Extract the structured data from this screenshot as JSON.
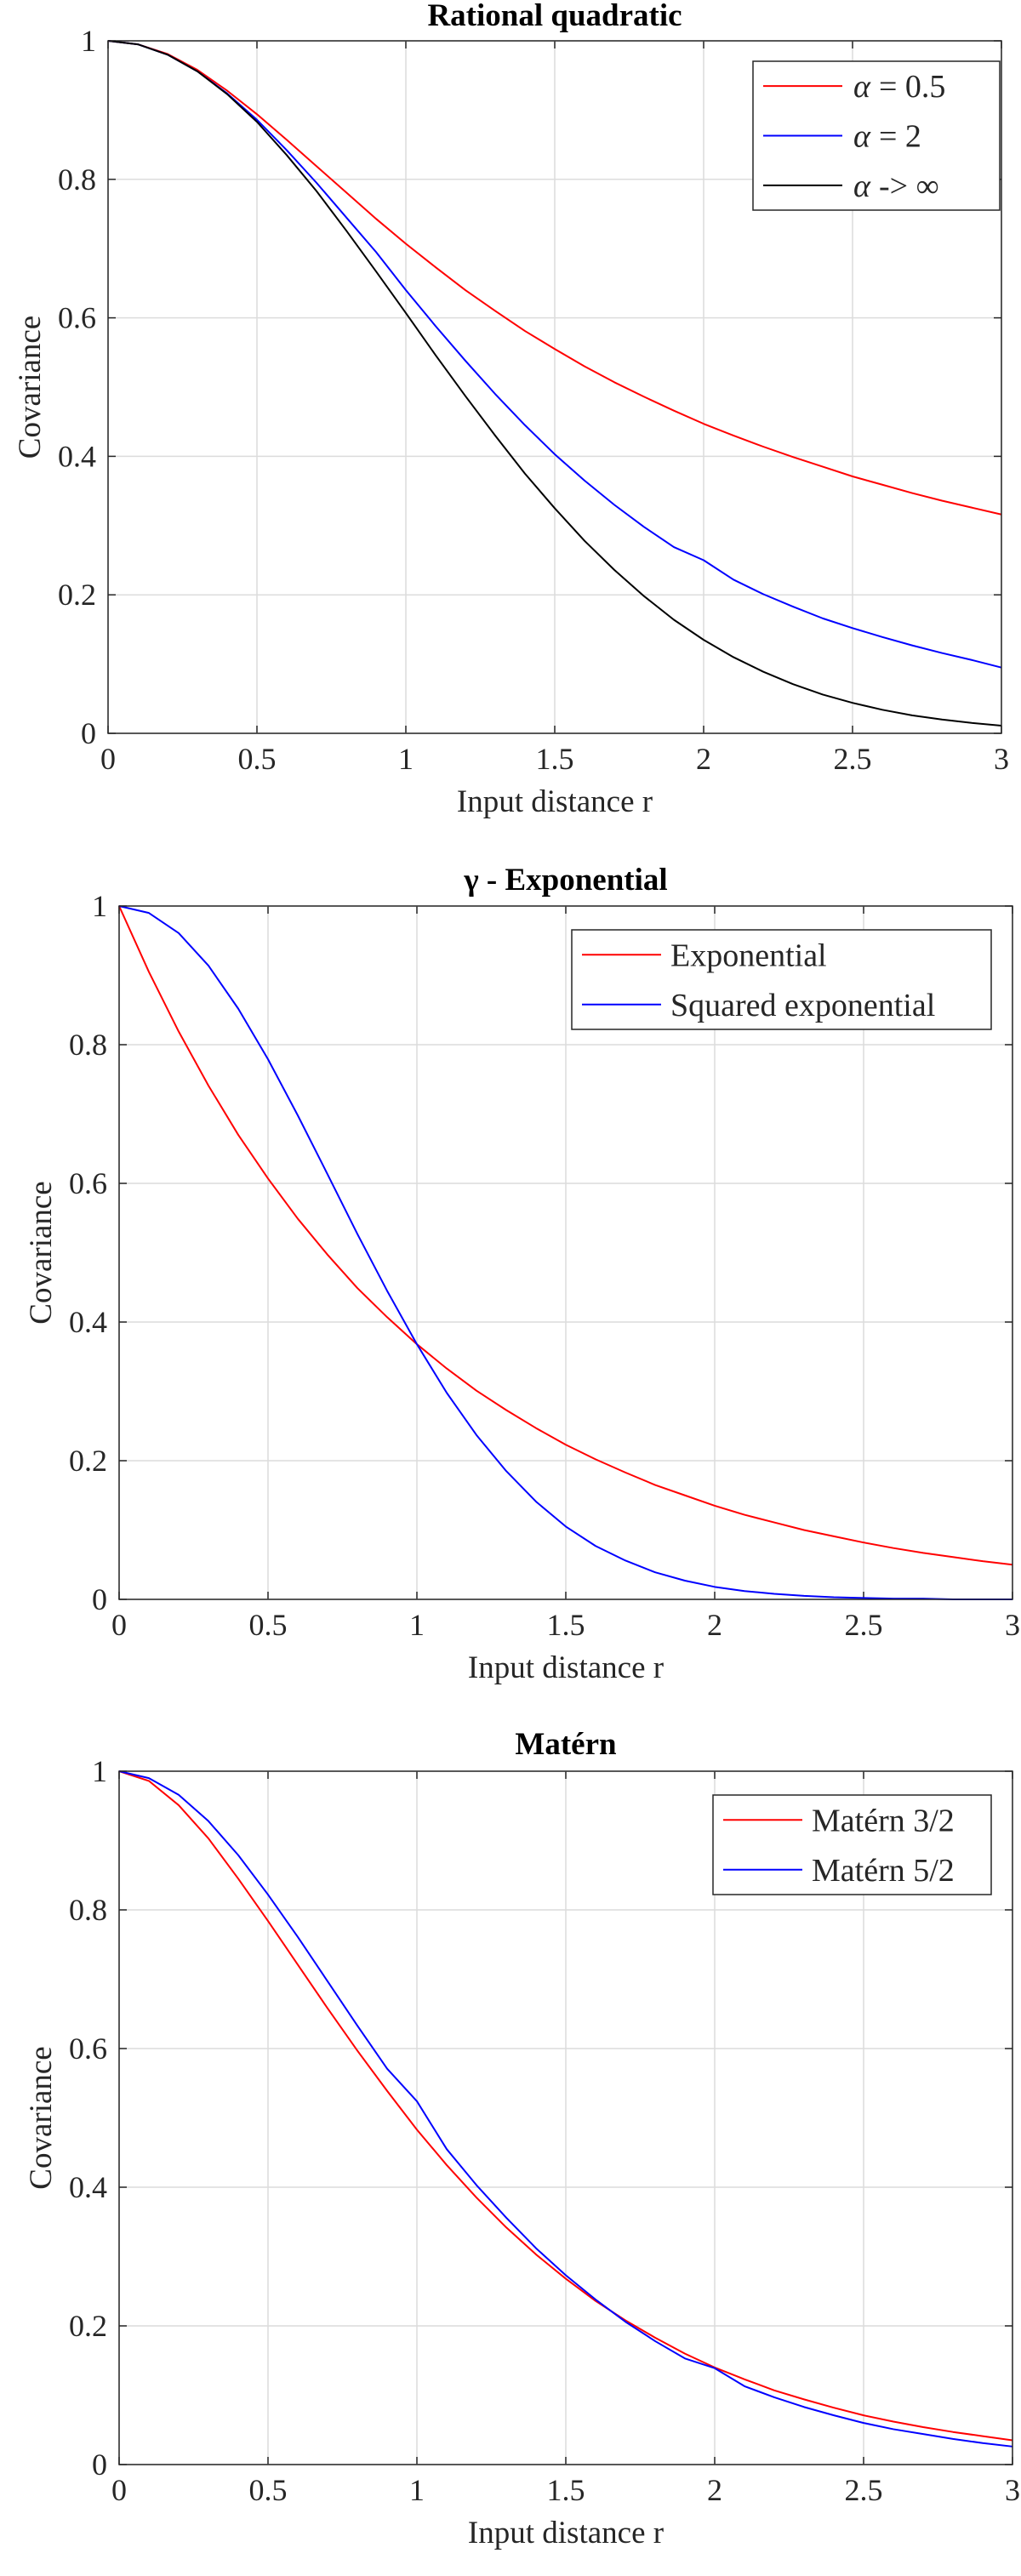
{
  "chart_data": [
    {
      "type": "line",
      "title": "Rational quadratic",
      "xlabel": "Input distance r",
      "ylabel": "Covariance",
      "xlim": [
        0,
        3
      ],
      "ylim": [
        0,
        1
      ],
      "xticks": [
        "0",
        "0.5",
        "1",
        "1.5",
        "2",
        "2.5",
        "3"
      ],
      "yticks": [
        "0",
        "0.2",
        "0.4",
        "0.6",
        "0.8",
        "1"
      ],
      "grid": true,
      "legend_position": "top-right",
      "x": [
        0,
        0.1,
        0.2,
        0.3,
        0.4,
        0.5,
        0.6,
        0.7,
        0.8,
        0.9,
        1.0,
        1.1,
        1.2,
        1.3,
        1.4,
        1.5,
        1.6,
        1.7,
        1.8,
        1.9,
        2.0,
        2.1,
        2.2,
        2.3,
        2.4,
        2.5,
        2.6,
        2.7,
        2.8,
        2.9,
        3.0
      ],
      "series": [
        {
          "name": "α = 0.5",
          "legend_text": "= 0.5",
          "color": "#ff0000",
          "values": [
            1,
            0.995,
            0.981,
            0.958,
            0.928,
            0.894,
            0.857,
            0.819,
            0.781,
            0.743,
            0.707,
            0.673,
            0.64,
            0.61,
            0.581,
            0.555,
            0.53,
            0.507,
            0.486,
            0.466,
            0.447,
            0.43,
            0.414,
            0.399,
            0.385,
            0.371,
            0.359,
            0.347,
            0.336,
            0.326,
            0.316
          ]
        },
        {
          "name": "α = 2",
          "legend_text": "= 2",
          "color": "#0000ff",
          "values": [
            1,
            0.995,
            0.98,
            0.956,
            0.924,
            0.886,
            0.842,
            0.795,
            0.745,
            0.695,
            0.64,
            0.588,
            0.538,
            0.49,
            0.445,
            0.403,
            0.365,
            0.33,
            0.298,
            0.269,
            0.25,
            0.222,
            0.201,
            0.183,
            0.166,
            0.152,
            0.139,
            0.127,
            0.116,
            0.106,
            0.095
          ]
        },
        {
          "name": "α -> ∞",
          "legend_text": "-> ∞",
          "color": "#000000",
          "values": [
            1,
            0.995,
            0.98,
            0.956,
            0.923,
            0.883,
            0.835,
            0.783,
            0.726,
            0.667,
            0.607,
            0.546,
            0.487,
            0.43,
            0.375,
            0.325,
            0.278,
            0.236,
            0.198,
            0.164,
            0.135,
            0.11,
            0.089,
            0.071,
            0.056,
            0.044,
            0.034,
            0.026,
            0.02,
            0.015,
            0.011
          ]
        }
      ]
    },
    {
      "type": "line",
      "title": "γ - Exponential",
      "xlabel": "Input distance r",
      "ylabel": "Covariance",
      "xlim": [
        0,
        3
      ],
      "ylim": [
        0,
        1
      ],
      "xticks": [
        "0",
        "0.5",
        "1",
        "1.5",
        "2",
        "2.5",
        "3"
      ],
      "yticks": [
        "0",
        "0.2",
        "0.4",
        "0.6",
        "0.8",
        "1"
      ],
      "grid": true,
      "legend_position": "top-right",
      "x": [
        0,
        0.1,
        0.2,
        0.3,
        0.4,
        0.5,
        0.6,
        0.7,
        0.8,
        0.9,
        1.0,
        1.1,
        1.2,
        1.3,
        1.4,
        1.5,
        1.6,
        1.7,
        1.8,
        1.9,
        2.0,
        2.1,
        2.2,
        2.3,
        2.4,
        2.5,
        2.6,
        2.7,
        2.8,
        2.9,
        3.0
      ],
      "series": [
        {
          "name": "Exponential",
          "legend_text": "Exponential",
          "color": "#ff0000",
          "values": [
            1,
            0.905,
            0.819,
            0.741,
            0.67,
            0.607,
            0.549,
            0.497,
            0.449,
            0.407,
            0.368,
            0.333,
            0.301,
            0.273,
            0.247,
            0.223,
            0.202,
            0.183,
            0.165,
            0.15,
            0.135,
            0.122,
            0.111,
            0.1,
            0.091,
            0.082,
            0.074,
            0.067,
            0.061,
            0.055,
            0.05
          ]
        },
        {
          "name": "Squared exponential",
          "legend_text": "Squared exponential",
          "color": "#0000ff",
          "values": [
            1,
            0.99,
            0.961,
            0.914,
            0.852,
            0.779,
            0.698,
            0.613,
            0.527,
            0.445,
            0.368,
            0.298,
            0.237,
            0.185,
            0.141,
            0.105,
            0.077,
            0.056,
            0.039,
            0.027,
            0.018,
            0.012,
            0.008,
            0.005,
            0.003,
            0.002,
            0.001,
            0.001,
            0.0,
            0.0,
            0.0
          ]
        }
      ]
    },
    {
      "type": "line",
      "title": "Matérn",
      "xlabel": "Input distance r",
      "ylabel": "Covariance",
      "xlim": [
        0,
        3
      ],
      "ylim": [
        0,
        1
      ],
      "xticks": [
        "0",
        "0.5",
        "1",
        "1.5",
        "2",
        "2.5",
        "3"
      ],
      "yticks": [
        "0",
        "0.2",
        "0.4",
        "0.6",
        "0.8",
        "1"
      ],
      "grid": true,
      "legend_position": "top-right",
      "x": [
        0,
        0.1,
        0.2,
        0.3,
        0.4,
        0.5,
        0.6,
        0.7,
        0.8,
        0.9,
        1.0,
        1.1,
        1.2,
        1.3,
        1.4,
        1.5,
        1.6,
        1.7,
        1.8,
        1.9,
        2.0,
        2.1,
        2.2,
        2.3,
        2.4,
        2.5,
        2.6,
        2.7,
        2.8,
        2.9,
        3.0
      ],
      "series": [
        {
          "name": "Matérn 3/2",
          "legend_text": "Matérn 3/2",
          "color": "#ff0000",
          "values": [
            1,
            0.986,
            0.951,
            0.903,
            0.845,
            0.784,
            0.721,
            0.658,
            0.597,
            0.539,
            0.483,
            0.432,
            0.385,
            0.342,
            0.303,
            0.268,
            0.236,
            0.208,
            0.183,
            0.16,
            0.14,
            0.123,
            0.107,
            0.094,
            0.082,
            0.071,
            0.062,
            0.054,
            0.047,
            0.041,
            0.035
          ]
        },
        {
          "name": "Matérn 5/2",
          "legend_text": "Matérn 5/2",
          "color": "#0000ff",
          "values": [
            1,
            0.99,
            0.966,
            0.928,
            0.879,
            0.822,
            0.761,
            0.697,
            0.633,
            0.571,
            0.524,
            0.455,
            0.403,
            0.356,
            0.312,
            0.273,
            0.238,
            0.206,
            0.178,
            0.153,
            0.139,
            0.113,
            0.097,
            0.083,
            0.071,
            0.06,
            0.051,
            0.044,
            0.037,
            0.031,
            0.026
          ]
        }
      ]
    }
  ]
}
